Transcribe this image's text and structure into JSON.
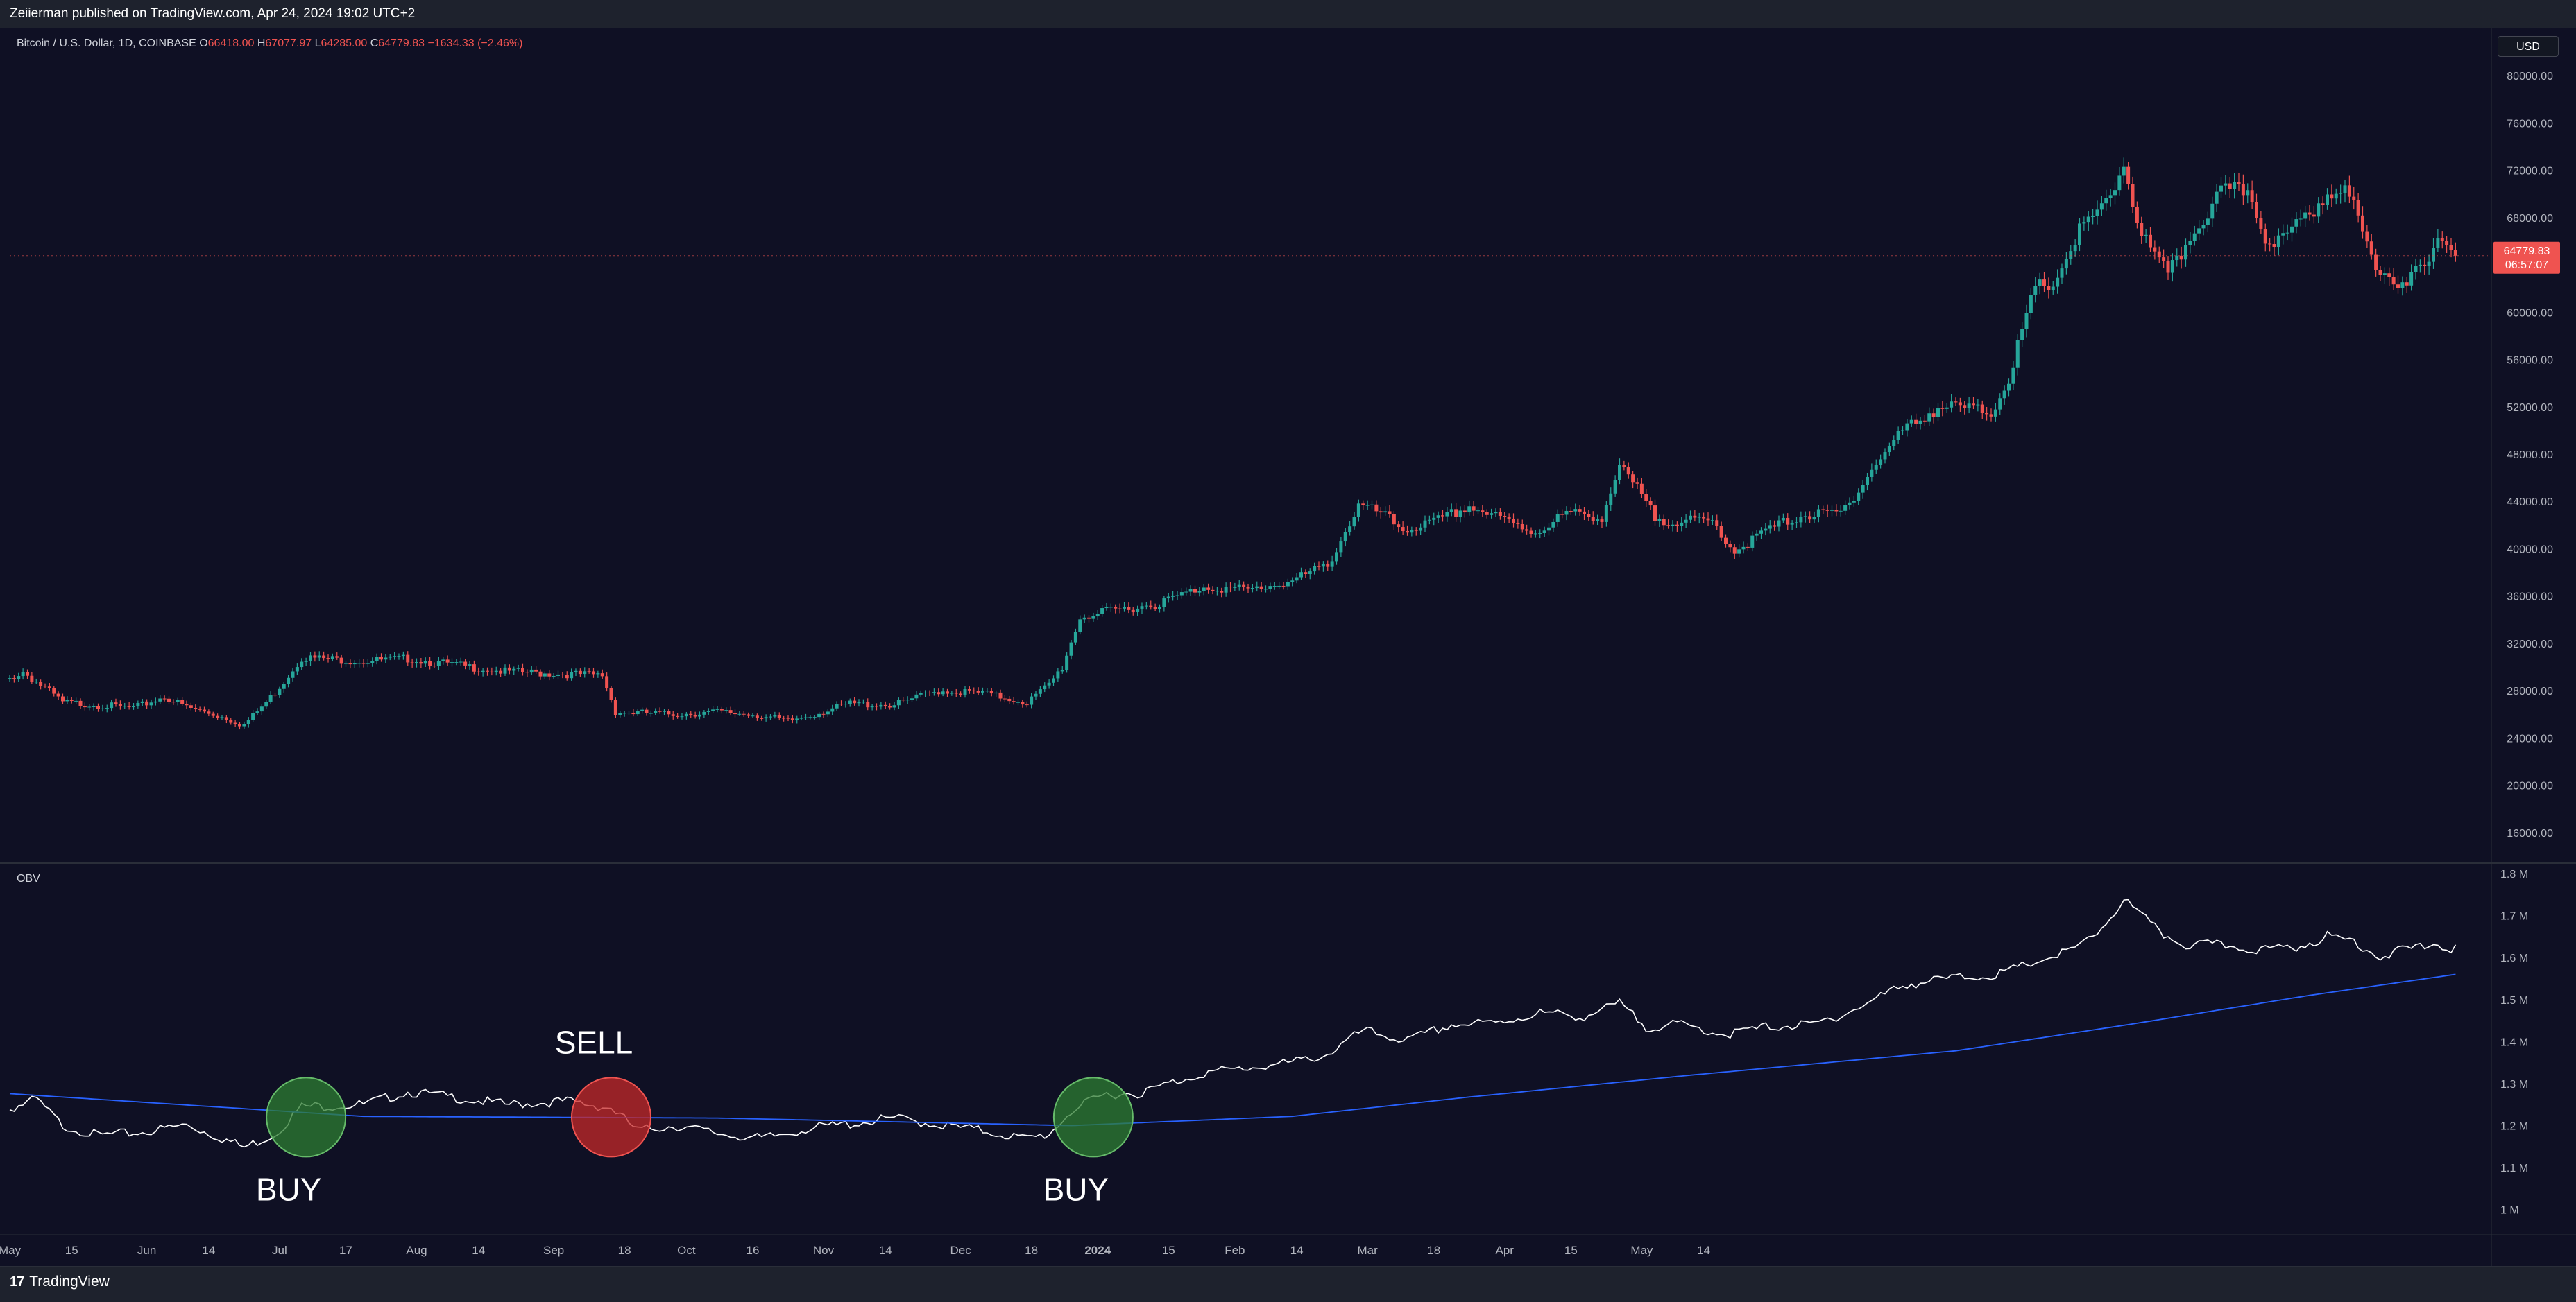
{
  "header": {
    "published_text": "Zeiierman published on TradingView.com, Apr 24, 2024 19:02 UTC+2"
  },
  "footer": {
    "brand": "TradingView",
    "logo_mark": "17"
  },
  "currency_badge": "USD",
  "colors": {
    "background": "#0f1024",
    "up": "#26a69a",
    "down": "#ef5350",
    "obv_line": "#ffffff",
    "obv_ma": "#2962ff",
    "grid_text": "#b2b5be",
    "buy_circle": "#2e7d32",
    "sell_circle": "#c62828"
  },
  "chart_data": [
    {
      "type": "candlestick",
      "title": "Bitcoin / U.S. Dollar, 1D, COINBASE",
      "ohlc_legend": {
        "open_label": "O",
        "open": "66418.00",
        "high_label": "H",
        "high": "67077.97",
        "low_label": "L",
        "low": "64285.00",
        "close_label": "C",
        "close": "64779.83",
        "change": "−1634.33 (−2.46%)"
      },
      "ylim": [
        14000,
        82000
      ],
      "yticks": [
        "16000.00",
        "20000.00",
        "24000.00",
        "28000.00",
        "32000.00",
        "36000.00",
        "40000.00",
        "44000.00",
        "48000.00",
        "52000.00",
        "56000.00",
        "60000.00",
        "64000.00",
        "68000.00",
        "72000.00",
        "76000.00",
        "80000.00"
      ],
      "last_price": {
        "value": 64779.83,
        "label": "64779.83",
        "countdown": "06:57:07"
      },
      "anchors": [
        [
          0,
          29000
        ],
        [
          3,
          29600
        ],
        [
          8,
          28200
        ],
        [
          12,
          27000
        ],
        [
          20,
          26800
        ],
        [
          28,
          26500
        ],
        [
          35,
          27500
        ],
        [
          40,
          26600
        ],
        [
          48,
          25800
        ],
        [
          53,
          25100
        ],
        [
          58,
          27000
        ],
        [
          62,
          28800
        ],
        [
          66,
          30800
        ],
        [
          80,
          30500
        ],
        [
          90,
          30700
        ],
        [
          100,
          30200
        ],
        [
          112,
          29600
        ],
        [
          126,
          29400
        ],
        [
          134,
          29300
        ],
        [
          137,
          26200
        ],
        [
          150,
          26000
        ],
        [
          160,
          26200
        ],
        [
          168,
          26000
        ],
        [
          176,
          25400
        ],
        [
          190,
          26900
        ],
        [
          200,
          26800
        ],
        [
          210,
          28000
        ],
        [
          220,
          27800
        ],
        [
          230,
          27000
        ],
        [
          235,
          28500
        ],
        [
          238,
          30000
        ],
        [
          242,
          34200
        ],
        [
          250,
          34800
        ],
        [
          260,
          35400
        ],
        [
          270,
          36800
        ],
        [
          280,
          36500
        ],
        [
          290,
          37300
        ],
        [
          298,
          38600
        ],
        [
          305,
          43600
        ],
        [
          310,
          43000
        ],
        [
          315,
          41600
        ],
        [
          322,
          42200
        ],
        [
          330,
          43600
        ],
        [
          340,
          42100
        ],
        [
          345,
          41400
        ],
        [
          352,
          43000
        ],
        [
          360,
          42700
        ],
        [
          364,
          46900
        ],
        [
          368,
          45000
        ],
        [
          372,
          42600
        ],
        [
          378,
          42300
        ],
        [
          385,
          42300
        ],
        [
          390,
          39800
        ],
        [
          398,
          41700
        ],
        [
          405,
          42800
        ],
        [
          414,
          43000
        ],
        [
          422,
          47200
        ],
        [
          428,
          50000
        ],
        [
          436,
          52000
        ],
        [
          444,
          51800
        ],
        [
          448,
          51500
        ],
        [
          452,
          54500
        ],
        [
          458,
          62000
        ],
        [
          462,
          62400
        ],
        [
          468,
          66800
        ],
        [
          474,
          69000
        ],
        [
          478,
          72500
        ],
        [
          482,
          66500
        ],
        [
          488,
          63000
        ],
        [
          494,
          67000
        ],
        [
          500,
          70000
        ],
        [
          506,
          70400
        ],
        [
          510,
          66500
        ],
        [
          514,
          66000
        ],
        [
          520,
          68500
        ],
        [
          526,
          70800
        ],
        [
          530,
          69000
        ],
        [
          534,
          64600
        ],
        [
          540,
          62500
        ],
        [
          546,
          63500
        ],
        [
          550,
          66500
        ],
        [
          553,
          64780
        ]
      ],
      "candle_count": 354,
      "x_axis_labels": [
        "May",
        "15",
        "Jun",
        "14",
        "Jul",
        "17",
        "Aug",
        "14",
        "Sep",
        "18",
        "Oct",
        "16",
        "Nov",
        "14",
        "Dec",
        "18",
        "2024",
        "15",
        "Feb",
        "14",
        "Mar",
        "18",
        "Apr",
        "15",
        "May",
        "14"
      ]
    },
    {
      "type": "line",
      "title": "OBV",
      "ylim": [
        0.95,
        1.8
      ],
      "yticks": [
        "1 M",
        "1.1 M",
        "1.2 M",
        "1.3 M",
        "1.4 M",
        "1.5 M",
        "1.6 M",
        "1.7 M",
        "1.8 M"
      ],
      "series": [
        {
          "name": "OBV",
          "anchors": [
            [
              0,
              1.24
            ],
            [
              6,
              1.262
            ],
            [
              12,
              1.2
            ],
            [
              20,
              1.176
            ],
            [
              30,
              1.184
            ],
            [
              40,
              1.202
            ],
            [
              48,
              1.17
            ],
            [
              53,
              1.148
            ],
            [
              60,
              1.18
            ],
            [
              66,
              1.245
            ],
            [
              80,
              1.25
            ],
            [
              90,
              1.28
            ],
            [
              100,
              1.268
            ],
            [
              112,
              1.25
            ],
            [
              126,
              1.258
            ],
            [
              136,
              1.242
            ],
            [
              142,
              1.188
            ],
            [
              150,
              1.2
            ],
            [
              160,
              1.182
            ],
            [
              170,
              1.168
            ],
            [
              180,
              1.192
            ],
            [
              190,
              1.204
            ],
            [
              200,
              1.218
            ],
            [
              210,
              1.202
            ],
            [
              220,
              1.188
            ],
            [
              230,
              1.168
            ],
            [
              235,
              1.18
            ],
            [
              240,
              1.235
            ],
            [
              248,
              1.275
            ],
            [
              256,
              1.278
            ],
            [
              262,
              1.3
            ],
            [
              270,
              1.325
            ],
            [
              282,
              1.34
            ],
            [
              290,
              1.35
            ],
            [
              298,
              1.37
            ],
            [
              306,
              1.426
            ],
            [
              316,
              1.402
            ],
            [
              326,
              1.44
            ],
            [
              336,
              1.444
            ],
            [
              346,
              1.468
            ],
            [
              356,
              1.46
            ],
            [
              364,
              1.49
            ],
            [
              370,
              1.435
            ],
            [
              378,
              1.44
            ],
            [
              388,
              1.417
            ],
            [
              398,
              1.436
            ],
            [
              408,
              1.44
            ],
            [
              418,
              1.48
            ],
            [
              428,
              1.535
            ],
            [
              440,
              1.552
            ],
            [
              450,
              1.56
            ],
            [
              458,
              1.59
            ],
            [
              466,
              1.616
            ],
            [
              470,
              1.64
            ],
            [
              474,
              1.682
            ],
            [
              478,
              1.738
            ],
            [
              482,
              1.7
            ],
            [
              486,
              1.66
            ],
            [
              492,
              1.63
            ],
            [
              500,
              1.63
            ],
            [
              510,
              1.618
            ],
            [
              518,
              1.628
            ],
            [
              524,
              1.65
            ],
            [
              530,
              1.64
            ],
            [
              536,
              1.602
            ],
            [
              542,
              1.62
            ],
            [
              548,
              1.632
            ],
            [
              553,
              1.62
            ]
          ]
        },
        {
          "name": "OBV MA",
          "anchors": [
            [
              0,
              1.276
            ],
            [
              80,
              1.222
            ],
            [
              160,
              1.218
            ],
            [
              240,
              1.2
            ],
            [
              290,
              1.222
            ],
            [
              330,
              1.268
            ],
            [
              380,
              1.32
            ],
            [
              440,
              1.378
            ],
            [
              480,
              1.442
            ],
            [
              520,
              1.51
            ],
            [
              553,
              1.56
            ]
          ]
        }
      ],
      "signals": [
        {
          "label": "BUY",
          "type": "buy",
          "x": 67,
          "y": 1.22,
          "label_pos": "below"
        },
        {
          "label": "SELL",
          "type": "sell",
          "x": 136,
          "y": 1.22,
          "label_pos": "above"
        },
        {
          "label": "BUY",
          "type": "buy",
          "x": 245,
          "y": 1.22,
          "label_pos": "below"
        }
      ]
    }
  ]
}
